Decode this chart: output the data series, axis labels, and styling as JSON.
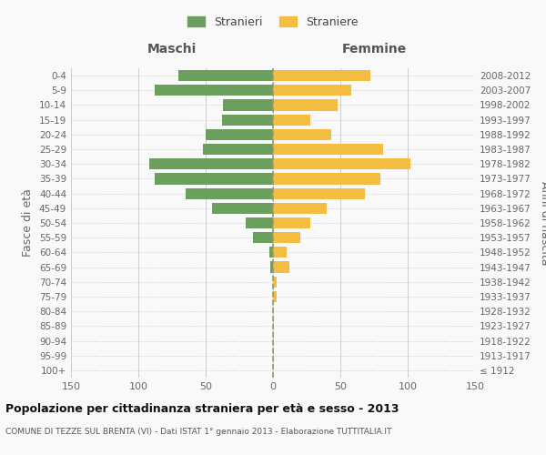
{
  "age_groups": [
    "100+",
    "95-99",
    "90-94",
    "85-89",
    "80-84",
    "75-79",
    "70-74",
    "65-69",
    "60-64",
    "55-59",
    "50-54",
    "45-49",
    "40-44",
    "35-39",
    "30-34",
    "25-29",
    "20-24",
    "15-19",
    "10-14",
    "5-9",
    "0-4"
  ],
  "birth_years": [
    "≤ 1912",
    "1913-1917",
    "1918-1922",
    "1923-1927",
    "1928-1932",
    "1933-1937",
    "1938-1942",
    "1943-1947",
    "1948-1952",
    "1953-1957",
    "1958-1962",
    "1963-1967",
    "1968-1972",
    "1973-1977",
    "1978-1982",
    "1983-1987",
    "1988-1992",
    "1993-1997",
    "1998-2002",
    "2003-2007",
    "2008-2012"
  ],
  "maschi": [
    0,
    0,
    0,
    0,
    0,
    0,
    0,
    2,
    3,
    15,
    20,
    45,
    65,
    88,
    92,
    52,
    50,
    38,
    37,
    88,
    70
  ],
  "femmine": [
    0,
    0,
    0,
    0,
    0,
    3,
    3,
    12,
    10,
    20,
    28,
    40,
    68,
    80,
    102,
    82,
    43,
    28,
    48,
    58,
    72
  ],
  "color_maschi": "#6a9f5e",
  "color_femmine": "#f5bc42",
  "color_grid": "#cccccc",
  "color_dashed": "#999966",
  "title": "Popolazione per cittadinanza straniera per età e sesso - 2013",
  "subtitle": "COMUNE DI TEZZE SUL BRENTA (VI) - Dati ISTAT 1° gennaio 2013 - Elaborazione TUTTITALIA.IT",
  "ylabel_left": "Fasce di età",
  "ylabel_right": "Anni di nascita",
  "xlabel_left": "Maschi",
  "xlabel_right": "Femmine",
  "legend_maschi": "Stranieri",
  "legend_femmine": "Straniere",
  "xlim": 150,
  "bg_color": "#f9f9f9"
}
